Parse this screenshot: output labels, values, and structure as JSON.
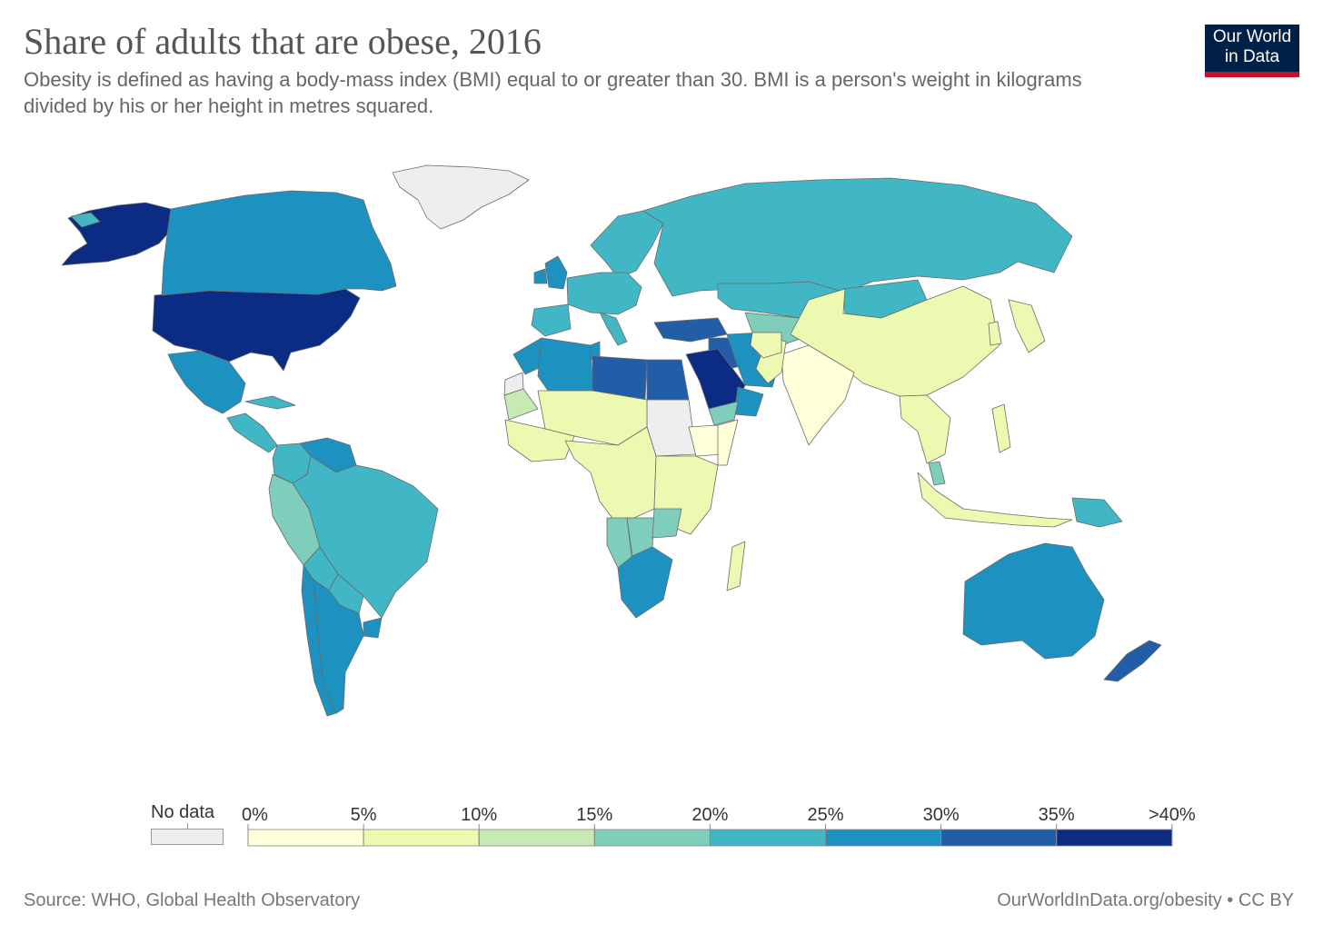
{
  "header": {
    "title": "Share of adults that are obese, 2016",
    "subtitle": "Obesity is defined as having a body-mass index (BMI) equal to or greater than 30. BMI is a person's weight in kilograms divided by his or her height in metres squared."
  },
  "logo": {
    "line1": "Our World",
    "line2": "in Data"
  },
  "footer": {
    "source": "Source: WHO, Global Health Observatory",
    "link": "OurWorldInData.org/obesity • CC BY"
  },
  "legend": {
    "nodata_label": "No data",
    "nodata_color": "#eeeeee",
    "bins": [
      {
        "label": "0%",
        "color": "#ffffd9"
      },
      {
        "label": "5%",
        "color": "#edf8b1"
      },
      {
        "label": "10%",
        "color": "#c7e9b4"
      },
      {
        "label": "15%",
        "color": "#7fcdbb"
      },
      {
        "label": "20%",
        "color": "#41b6c4"
      },
      {
        "label": "25%",
        "color": "#1d91c0"
      },
      {
        "label": "30%",
        "color": "#225ea8"
      },
      {
        "label": "35%",
        "color": "#0c2c84"
      }
    ],
    "last_label": ">40%"
  },
  "chart_data": {
    "type": "choropleth",
    "year": 2016,
    "unit": "%",
    "scale_breaks": [
      0,
      5,
      10,
      15,
      20,
      25,
      30,
      35,
      40
    ],
    "regions": [
      {
        "name": "Alaska",
        "bin": 7
      },
      {
        "name": "United States",
        "bin": 7
      },
      {
        "name": "Canada",
        "bin": 5
      },
      {
        "name": "Greenland",
        "bin": -1
      },
      {
        "name": "Mexico",
        "bin": 5
      },
      {
        "name": "Central America",
        "bin": 4
      },
      {
        "name": "Cuba",
        "bin": 4
      },
      {
        "name": "Colombia",
        "bin": 4
      },
      {
        "name": "Venezuela",
        "bin": 5
      },
      {
        "name": "Peru",
        "bin": 3
      },
      {
        "name": "Brazil",
        "bin": 4
      },
      {
        "name": "Bolivia",
        "bin": 4
      },
      {
        "name": "Paraguay",
        "bin": 4
      },
      {
        "name": "Argentina",
        "bin": 5
      },
      {
        "name": "Chile",
        "bin": 5
      },
      {
        "name": "Uruguay",
        "bin": 5
      },
      {
        "name": "Iceland",
        "bin": 4
      },
      {
        "name": "Scandinavia",
        "bin": 4
      },
      {
        "name": "United Kingdom",
        "bin": 5
      },
      {
        "name": "Ireland",
        "bin": 5
      },
      {
        "name": "Western Europe",
        "bin": 4
      },
      {
        "name": "Iberia",
        "bin": 4
      },
      {
        "name": "Italy",
        "bin": 4
      },
      {
        "name": "Russia",
        "bin": 4
      },
      {
        "name": "Kazakhstan",
        "bin": 4
      },
      {
        "name": "Central Asia",
        "bin": 3
      },
      {
        "name": "Turkey",
        "bin": 6
      },
      {
        "name": "Iraq",
        "bin": 6
      },
      {
        "name": "Iran",
        "bin": 5
      },
      {
        "name": "Saudi Arabia",
        "bin": 7
      },
      {
        "name": "Oman",
        "bin": 5
      },
      {
        "name": "Yemen",
        "bin": 3
      },
      {
        "name": "Morocco",
        "bin": 5
      },
      {
        "name": "Algeria",
        "bin": 5
      },
      {
        "name": "Tunisia",
        "bin": 5
      },
      {
        "name": "Libya",
        "bin": 6
      },
      {
        "name": "Egypt",
        "bin": 6
      },
      {
        "name": "Western Sahara",
        "bin": -1
      },
      {
        "name": "Mauritania",
        "bin": 2
      },
      {
        "name": "Sudan",
        "bin": -1
      },
      {
        "name": "Ethiopia",
        "bin": 0
      },
      {
        "name": "Somalia",
        "bin": 0
      },
      {
        "name": "Sahel",
        "bin": 1
      },
      {
        "name": "West Africa",
        "bin": 1
      },
      {
        "name": "Central Africa",
        "bin": 1
      },
      {
        "name": "East Africa",
        "bin": 1
      },
      {
        "name": "Namibia",
        "bin": 3
      },
      {
        "name": "Botswana",
        "bin": 3
      },
      {
        "name": "Zimbabwe",
        "bin": 3
      },
      {
        "name": "South Africa",
        "bin": 5
      },
      {
        "name": "Madagascar",
        "bin": 1
      },
      {
        "name": "Mongolia",
        "bin": 4
      },
      {
        "name": "China",
        "bin": 1
      },
      {
        "name": "India",
        "bin": 0
      },
      {
        "name": "Pakistan",
        "bin": 1
      },
      {
        "name": "Afghanistan",
        "bin": 1
      },
      {
        "name": "Southeast Asia",
        "bin": 1
      },
      {
        "name": "Malaysia",
        "bin": 3
      },
      {
        "name": "Indonesia",
        "bin": 1
      },
      {
        "name": "Philippines",
        "bin": 1
      },
      {
        "name": "Japan",
        "bin": 1
      },
      {
        "name": "Korea",
        "bin": 1
      },
      {
        "name": "Papua New Guinea",
        "bin": 4
      },
      {
        "name": "Australia",
        "bin": 5
      },
      {
        "name": "New Zealand",
        "bin": 6
      }
    ]
  }
}
